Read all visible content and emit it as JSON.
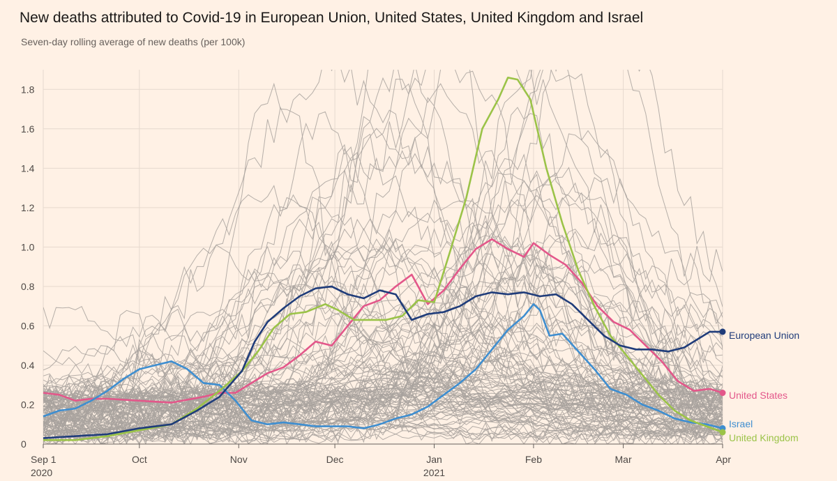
{
  "header": {
    "title": "New deaths attributed to Covid-19 in European Union, United States, United Kingdom and Israel",
    "subtitle": "Seven-day rolling average of new deaths (per 100k)"
  },
  "colors": {
    "background": "#fff1e5",
    "grid": "#e6d9ce",
    "axis": "#66605c",
    "background_lines": "#a8a29d",
    "eu": "#1f3c7a",
    "us": "#e3578a",
    "uk": "#9bc348",
    "israel": "#3e8ed0"
  },
  "chart_data": {
    "type": "line",
    "title": "New deaths attributed to Covid-19 in European Union, United States, United Kingdom and Israel",
    "subtitle": "Seven-day rolling average of new deaths (per 100k)",
    "xlabel": "",
    "ylabel": "",
    "x_unit": "days since 2020-09-01",
    "xlim": [
      0,
      212
    ],
    "ylim": [
      0,
      1.9
    ],
    "grid": true,
    "y_ticks": [
      0,
      0.2,
      0.4,
      0.6,
      0.8,
      1.0,
      1.2,
      1.4,
      1.6,
      1.8
    ],
    "y_tick_labels": [
      "0",
      "0.2",
      "0.4",
      "0.6",
      "0.8",
      "1.0",
      "1.2",
      "1.4",
      "1.6",
      "1.8"
    ],
    "x_ticks": [
      {
        "x": 0,
        "label": "Sep 1",
        "sublabel": "2020"
      },
      {
        "x": 30,
        "label": "Oct",
        "sublabel": ""
      },
      {
        "x": 61,
        "label": "Nov",
        "sublabel": ""
      },
      {
        "x": 91,
        "label": "Dec",
        "sublabel": ""
      },
      {
        "x": 122,
        "label": "Jan",
        "sublabel": "2021"
      },
      {
        "x": 153,
        "label": "Feb",
        "sublabel": ""
      },
      {
        "x": 181,
        "label": "Mar",
        "sublabel": ""
      },
      {
        "x": 212,
        "label": "Apr",
        "sublabel": ""
      }
    ],
    "background_series_note": "grey lines: other countries",
    "series": [
      {
        "key": "eu",
        "name": "European Union",
        "x": [
          0,
          10,
          20,
          30,
          40,
          48,
          55,
          62,
          66,
          70,
          75,
          80,
          85,
          90,
          95,
          100,
          105,
          110,
          115,
          120,
          125,
          130,
          135,
          140,
          145,
          150,
          155,
          160,
          165,
          170,
          175,
          180,
          185,
          190,
          195,
          200,
          205,
          208,
          212
        ],
        "values": [
          0.03,
          0.04,
          0.05,
          0.08,
          0.1,
          0.17,
          0.24,
          0.37,
          0.52,
          0.62,
          0.69,
          0.75,
          0.79,
          0.8,
          0.76,
          0.74,
          0.78,
          0.76,
          0.63,
          0.66,
          0.67,
          0.7,
          0.75,
          0.77,
          0.76,
          0.77,
          0.75,
          0.76,
          0.71,
          0.63,
          0.55,
          0.5,
          0.48,
          0.48,
          0.47,
          0.49,
          0.54,
          0.57,
          0.57
        ]
      },
      {
        "key": "us",
        "name": "United States",
        "x": [
          0,
          5,
          10,
          15,
          20,
          30,
          40,
          50,
          55,
          60,
          65,
          70,
          75,
          80,
          85,
          90,
          95,
          100,
          105,
          110,
          115,
          120,
          125,
          130,
          135,
          140,
          145,
          150,
          153,
          158,
          163,
          168,
          173,
          178,
          183,
          188,
          193,
          198,
          203,
          208,
          212
        ],
        "values": [
          0.26,
          0.25,
          0.22,
          0.23,
          0.23,
          0.22,
          0.21,
          0.24,
          0.26,
          0.26,
          0.31,
          0.36,
          0.39,
          0.45,
          0.52,
          0.5,
          0.6,
          0.7,
          0.73,
          0.8,
          0.86,
          0.71,
          0.78,
          0.89,
          0.99,
          1.04,
          0.99,
          0.95,
          1.02,
          0.96,
          0.91,
          0.82,
          0.7,
          0.62,
          0.58,
          0.5,
          0.42,
          0.32,
          0.27,
          0.28,
          0.26
        ]
      },
      {
        "key": "uk",
        "name": "United Kingdom",
        "x": [
          0,
          10,
          20,
          30,
          40,
          48,
          55,
          62,
          67,
          72,
          77,
          82,
          88,
          92,
          97,
          102,
          107,
          112,
          117,
          122,
          127,
          132,
          137,
          142,
          145,
          148,
          152,
          157,
          162,
          167,
          172,
          177,
          182,
          187,
          192,
          197,
          202,
          207,
          212
        ],
        "values": [
          0.02,
          0.02,
          0.04,
          0.07,
          0.1,
          0.18,
          0.27,
          0.37,
          0.47,
          0.59,
          0.66,
          0.67,
          0.71,
          0.68,
          0.63,
          0.63,
          0.63,
          0.65,
          0.73,
          0.72,
          0.98,
          1.25,
          1.6,
          1.75,
          1.86,
          1.85,
          1.75,
          1.4,
          1.12,
          0.88,
          0.7,
          0.55,
          0.45,
          0.35,
          0.25,
          0.17,
          0.12,
          0.09,
          0.06
        ]
      },
      {
        "key": "israel",
        "name": "Israel",
        "x": [
          0,
          5,
          10,
          15,
          20,
          25,
          30,
          35,
          40,
          45,
          50,
          55,
          60,
          65,
          70,
          75,
          80,
          85,
          90,
          95,
          100,
          105,
          110,
          115,
          120,
          125,
          130,
          135,
          140,
          145,
          150,
          153,
          155,
          158,
          162,
          167,
          172,
          177,
          182,
          187,
          192,
          197,
          202,
          207,
          212
        ],
        "values": [
          0.14,
          0.17,
          0.18,
          0.22,
          0.27,
          0.33,
          0.38,
          0.4,
          0.42,
          0.38,
          0.31,
          0.3,
          0.22,
          0.12,
          0.1,
          0.11,
          0.1,
          0.09,
          0.09,
          0.09,
          0.08,
          0.1,
          0.13,
          0.15,
          0.19,
          0.25,
          0.31,
          0.38,
          0.48,
          0.58,
          0.65,
          0.71,
          0.68,
          0.55,
          0.56,
          0.47,
          0.38,
          0.28,
          0.25,
          0.2,
          0.17,
          0.13,
          0.11,
          0.1,
          0.08
        ]
      }
    ]
  }
}
